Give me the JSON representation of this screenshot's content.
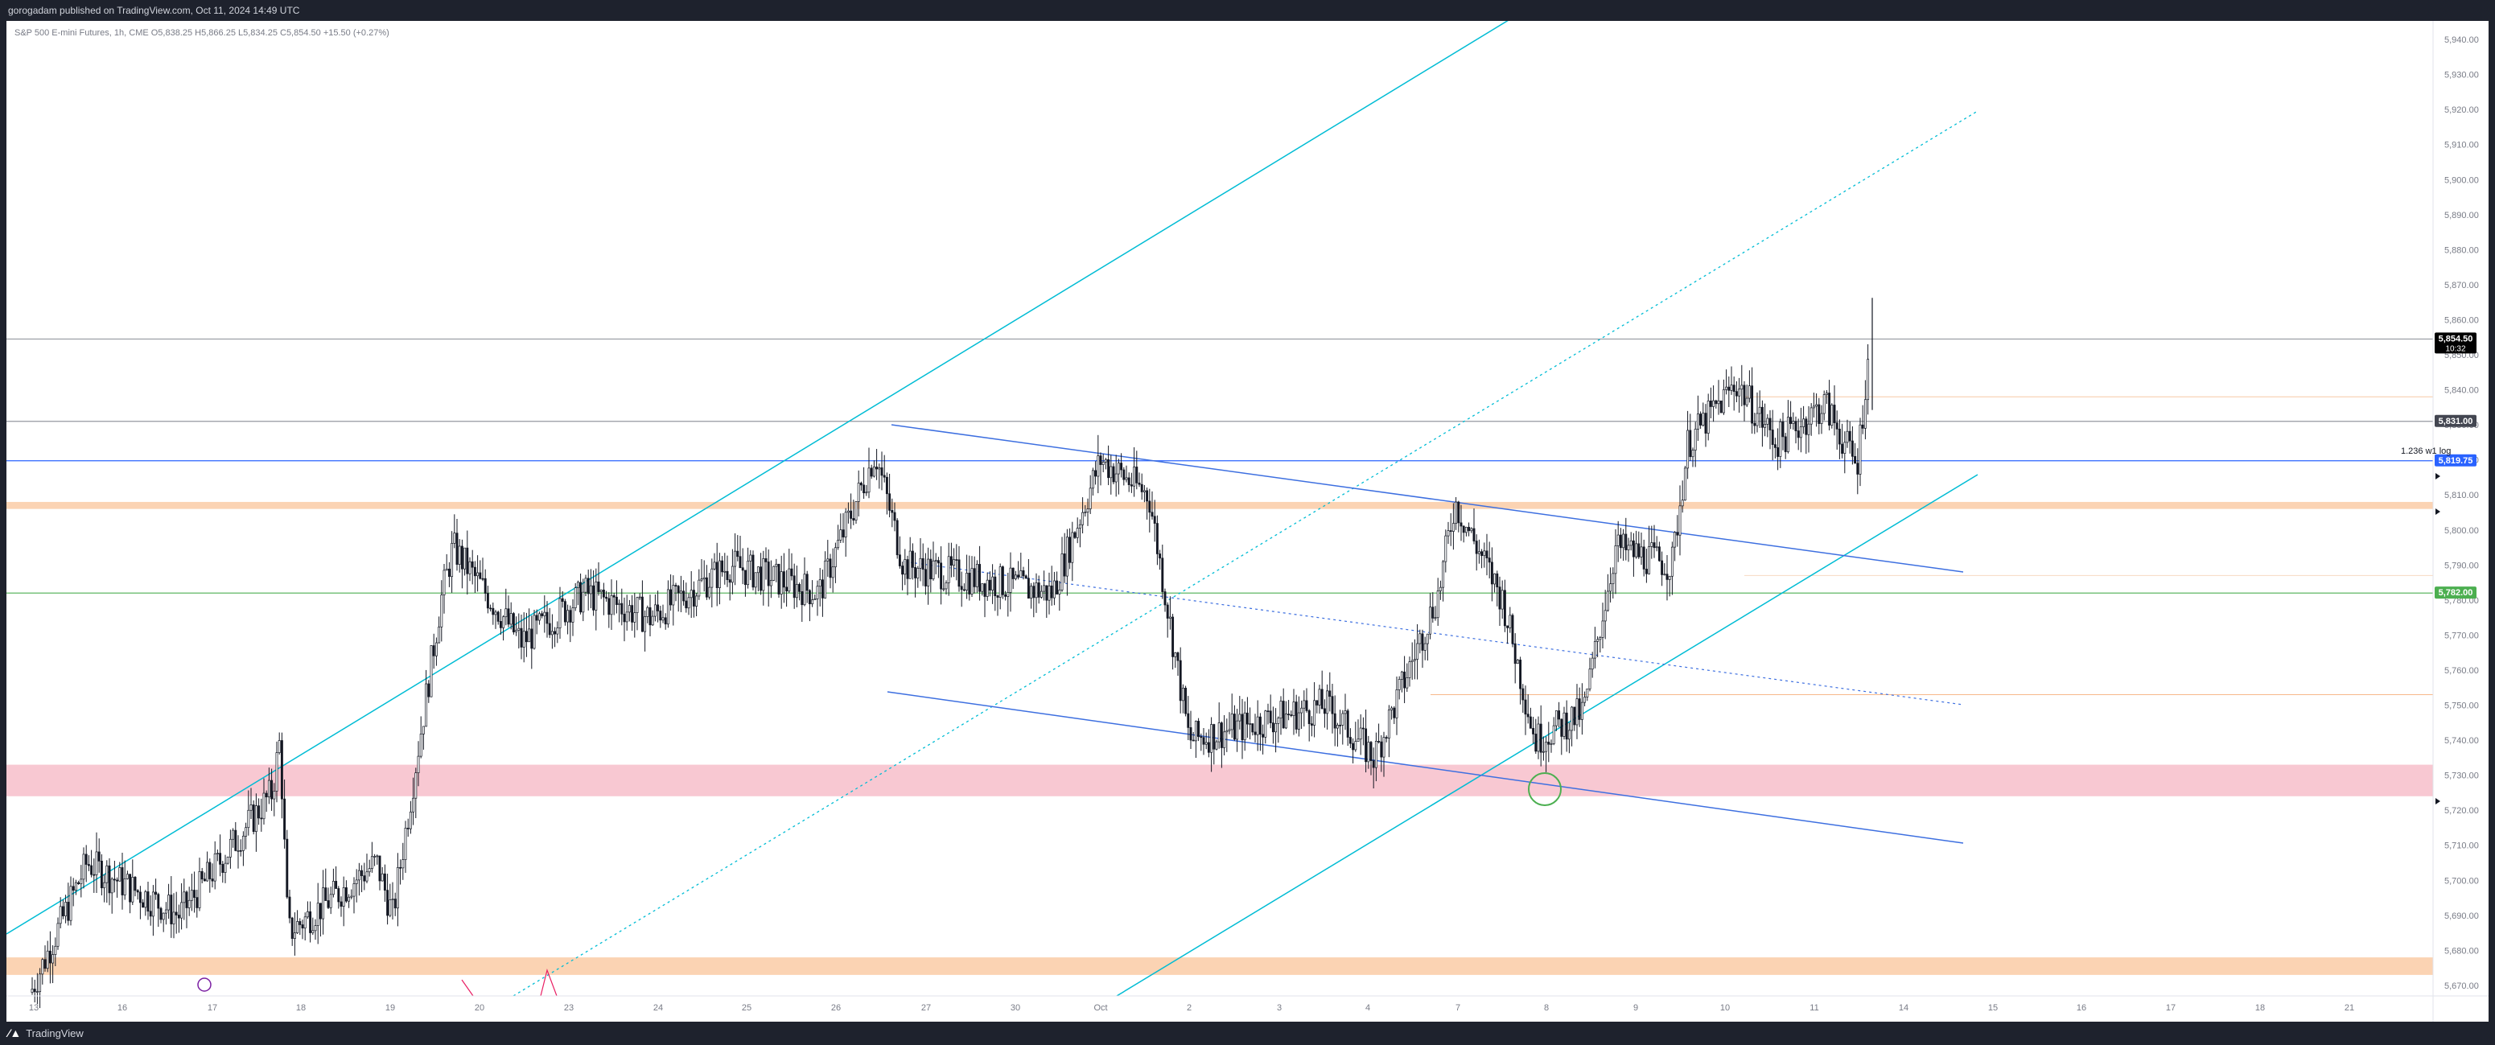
{
  "header": {
    "published": "gorogadam published on TradingView.com, Oct 11, 2024 14:49 UTC"
  },
  "footer": {
    "brand": "TradingView",
    "brand_icon": "tradingview-logo-icon"
  },
  "chart_data": {
    "type": "candlestick",
    "legend": "S&P 500 E-mini Futures, 1h, CME  O5,838.25  H5,866.25  L5,834.25  C5,854.50  +15.50 (+0.27%)",
    "symbol": "S&P 500 E-mini Futures",
    "interval": "1h",
    "exchange": "CME",
    "ohlc_last": {
      "open": 5838.25,
      "high": 5866.25,
      "low": 5834.25,
      "close": 5854.5,
      "change": "+15.50 (+0.27%)"
    },
    "ylim": [
      5667,
      5943
    ],
    "yticks": [
      "5,670.00",
      "5,680.00",
      "5,690.00",
      "5,700.00",
      "5,710.00",
      "5,720.00",
      "5,730.00",
      "5,740.00",
      "5,750.00",
      "5,760.00",
      "5,770.00",
      "5,780.00",
      "5,790.00",
      "5,800.00",
      "5,810.00",
      "5,820.00",
      "5,830.00",
      "5,840.00",
      "5,850.00",
      "5,860.00",
      "5,870.00",
      "5,880.00",
      "5,890.00",
      "5,900.00",
      "5,910.00",
      "5,920.00",
      "5,930.00",
      "5,940.00"
    ],
    "xticks": [
      "13",
      "16",
      "17",
      "18",
      "19",
      "20",
      "23",
      "24",
      "25",
      "26",
      "27",
      "30",
      "Oct",
      "2",
      "3",
      "4",
      "7",
      "8",
      "9",
      "10",
      "11",
      "14",
      "15",
      "16",
      "17",
      "18",
      "21"
    ],
    "price_labels": [
      {
        "value": 5854.5,
        "text": "5,854.50",
        "sub": "10:32",
        "color": "#000000"
      },
      {
        "value": 5831.0,
        "text": "5,831.00",
        "color": "#434651"
      },
      {
        "value": 5819.75,
        "text": "5,819.75",
        "color": "#2962ff"
      },
      {
        "value": 5782.0,
        "text": "5,782.00",
        "color": "#4caf50"
      }
    ],
    "annotation": "1.236 w1 log",
    "horizontal_lines": [
      {
        "value": 5854.5,
        "color": "#9598a1"
      },
      {
        "value": 5831.0,
        "color": "#9598a1"
      },
      {
        "value": 5819.75,
        "color": "#2962ff"
      },
      {
        "value": 5782.0,
        "color": "#4caf50"
      }
    ],
    "zones": [
      {
        "from": 5724,
        "to": 5733,
        "color": "#f8c8d2"
      },
      {
        "from": 5673,
        "to": 5678,
        "color": "#fbd3b3"
      },
      {
        "from": 5806,
        "to": 5808,
        "color": "#fbd3b3"
      }
    ],
    "colors": {
      "candle": "#131722",
      "channel": "#00bcd4",
      "trend": "#3d6fe0",
      "zone_pink": "#f8c8d2",
      "zone_orange": "#fbd3b3",
      "axis_text": "#787b86"
    }
  }
}
